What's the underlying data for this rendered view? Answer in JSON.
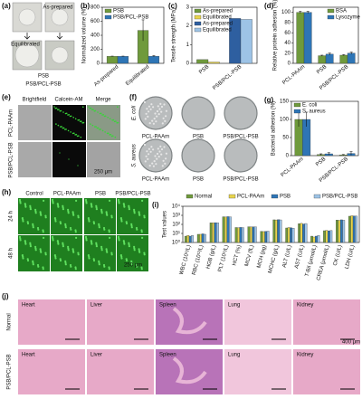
{
  "chart_data": [
    {
      "type": "bar",
      "panel": "(b)",
      "ylabel": "Normalized volume (%)",
      "categories": [
        "As-prepared",
        "Equilibrated"
      ],
      "series": [
        {
          "name": "PSB",
          "color": "#6f9a3c",
          "values": [
            100,
            470
          ],
          "errors": [
            3,
            150
          ]
        },
        {
          "name": "PSB/PCL-PSB",
          "color": "#2e75b6",
          "values": [
            100,
            102
          ],
          "errors": [
            3,
            8
          ]
        }
      ],
      "ylim": [
        0,
        800
      ],
      "yticks": [
        0,
        200,
        400,
        600,
        800
      ],
      "legend": "upper left"
    },
    {
      "type": "bar",
      "panel": "(c)",
      "ylabel": "Tensile strength (MPa)",
      "categories": [
        "PSB",
        "PSB/PCL-PSB"
      ],
      "series": [
        {
          "name": "As-prepared",
          "color": "#6f9a3c",
          "values": [
            0.2,
            null
          ]
        },
        {
          "name": "Equilibrated",
          "color": "#e8d44d",
          "values": [
            0.07,
            null
          ]
        },
        {
          "name": "As-prepared",
          "color": "#2e5fa0",
          "values": [
            null,
            2.4
          ]
        },
        {
          "name": "Equilibrated",
          "color": "#9dc3e6",
          "values": [
            null,
            2.35
          ]
        }
      ],
      "ylim": [
        0,
        3
      ],
      "yticks": [
        0,
        1,
        2,
        3
      ],
      "legend": "upper left"
    },
    {
      "type": "bar",
      "panel": "(d)",
      "ylabel": "Relative protein adhesion (%)",
      "categories": [
        "PCL-PAAm",
        "PSB",
        "PSB/PCL-PSB"
      ],
      "series": [
        {
          "name": "BSA",
          "color": "#6f9a3c",
          "values": [
            100,
            15,
            16
          ],
          "errors": [
            2,
            1,
            1
          ]
        },
        {
          "name": "Lysozyme",
          "color": "#2e75b6",
          "values": [
            100,
            18,
            20
          ],
          "errors": [
            2,
            2,
            2
          ]
        }
      ],
      "ylim": [
        0,
        110
      ],
      "yticks": [
        0,
        20,
        40,
        60,
        80,
        100
      ],
      "legend": "upper right"
    },
    {
      "type": "bar",
      "panel": "(g)",
      "ylabel": "Bacterial adhesion (%)",
      "categories": [
        "PCL-PAAm",
        "PSB",
        "PSB/PCL-PSB"
      ],
      "series": [
        {
          "name": "E. coli",
          "color": "#6f9a3c",
          "values": [
            100,
            3,
            2
          ],
          "errors": [
            20,
            2,
            1
          ]
        },
        {
          "name": "S. aureus",
          "color": "#2e75b6",
          "values": [
            100,
            5,
            6
          ],
          "errors": [
            20,
            3,
            5
          ]
        }
      ],
      "ylim": [
        0,
        150
      ],
      "yticks": [
        0,
        50,
        100,
        150
      ],
      "legend": "upper left"
    },
    {
      "type": "bar",
      "panel": "(i)",
      "ylabel": "Test values",
      "log": true,
      "categories": [
        "WBC (10⁹/L)",
        "RBC (10¹²/L)",
        "HGB (g/L)",
        "PLT (10⁹/L)",
        "HCT (%)",
        "MCV (fL)",
        "MCH (pg)",
        "MCHC (g/L)",
        "ALT (U/L)",
        "AST (U/L)",
        "T-Bil (μmol/L)",
        "CREA (μmol/L)",
        "CK (U/L)",
        "LDH (U/L)"
      ],
      "series": [
        {
          "name": "Normal",
          "color": "#6f9a3c",
          "values": [
            5,
            8,
            150,
            700,
            45,
            55,
            17,
            320,
            40,
            120,
            5,
            20,
            300,
            800
          ]
        },
        {
          "name": "PCL-PAAm",
          "color": "#e8d44d",
          "values": [
            6,
            8,
            145,
            650,
            43,
            52,
            16,
            310,
            45,
            130,
            4,
            22,
            280,
            900
          ]
        },
        {
          "name": "PSB",
          "color": "#2e75b6",
          "values": [
            5,
            9,
            155,
            720,
            46,
            54,
            17,
            330,
            42,
            110,
            5,
            19,
            320,
            850
          ]
        },
        {
          "name": "PSB/PCL-PSB",
          "color": "#9dc3e6",
          "values": [
            6,
            8,
            150,
            680,
            44,
            53,
            18,
            315,
            38,
            125,
            6,
            21,
            290,
            820
          ]
        }
      ],
      "ylim": [
        1,
        10000
      ],
      "yticks": [
        {
          "value": 1,
          "label": "10⁰"
        },
        {
          "value": 10,
          "label": "10¹"
        },
        {
          "value": 100,
          "label": "10²"
        },
        {
          "value": 1000,
          "label": "10³"
        },
        {
          "value": 10000,
          "label": "10⁴"
        }
      ],
      "legend": "top"
    }
  ],
  "image_panels": {
    "a": {
      "label": "(a)",
      "texts": [
        "As-prepared",
        "Equilibrated",
        "PSB",
        "PSB/PCL-PSB"
      ]
    },
    "e": {
      "label": "(e)",
      "columns": [
        "Brightfield",
        "Calcein-AM",
        "Merge"
      ],
      "rows": [
        "PCL-PAAm",
        "PSB/PCL-PSB"
      ],
      "scale_bar": "250 μm"
    },
    "f": {
      "label": "(f)",
      "rows": [
        "E. coli",
        "S. aureus"
      ],
      "columns": [
        "PCL-PAAm",
        "PSB",
        "PSB/PCL-PSB"
      ]
    },
    "h": {
      "label": "(h)",
      "columns": [
        "Control",
        "PCL-PAAm",
        "PSB",
        "PSB/PCL-PSB"
      ],
      "rows": [
        "24 h",
        "48 h"
      ],
      "scale_bar": "250 μm"
    },
    "j": {
      "label": "(j)",
      "rows": [
        "Normal",
        "PSB/PCL-PSB"
      ],
      "organs": [
        "Heart",
        "Liver",
        "Spleen",
        "Lung",
        "Kidney"
      ],
      "scale_bar": "400 μm"
    }
  }
}
